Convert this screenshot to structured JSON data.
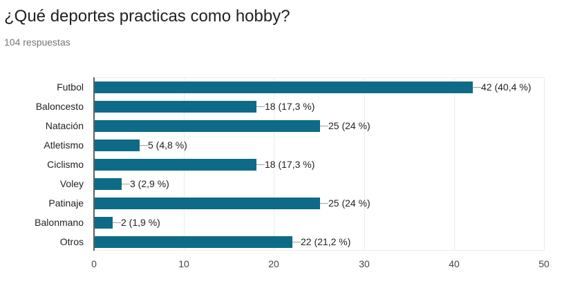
{
  "header": {
    "title": "¿Qué deportes practicas como hobby?",
    "responses": "104 respuestas"
  },
  "style": {
    "bar_color": "#0e6b87"
  },
  "chart_data": {
    "type": "bar",
    "orientation": "horizontal",
    "title": "¿Qué deportes practicas como hobby?",
    "subtitle": "104 respuestas",
    "xlabel": "",
    "ylabel": "",
    "xlim": [
      0,
      50
    ],
    "x_ticks": [
      "0",
      "10",
      "20",
      "30",
      "40",
      "50"
    ],
    "grid": true,
    "legend": null,
    "categories": [
      "Futbol",
      "Baloncesto",
      "Natación",
      "Atletismo",
      "Ciclismo",
      "Voley",
      "Patinaje",
      "Balonmano",
      "Otros"
    ],
    "values": [
      42,
      18,
      25,
      5,
      18,
      3,
      25,
      2,
      22
    ],
    "labels": [
      "42 (40,4 %)",
      "18 (17,3 %)",
      "25 (24 %)",
      "5 (4,8 %)",
      "18 (17,3 %)",
      "3 (2,9 %)",
      "25 (24 %)",
      "2 (1,9 %)",
      "22 (21,2 %)"
    ]
  }
}
